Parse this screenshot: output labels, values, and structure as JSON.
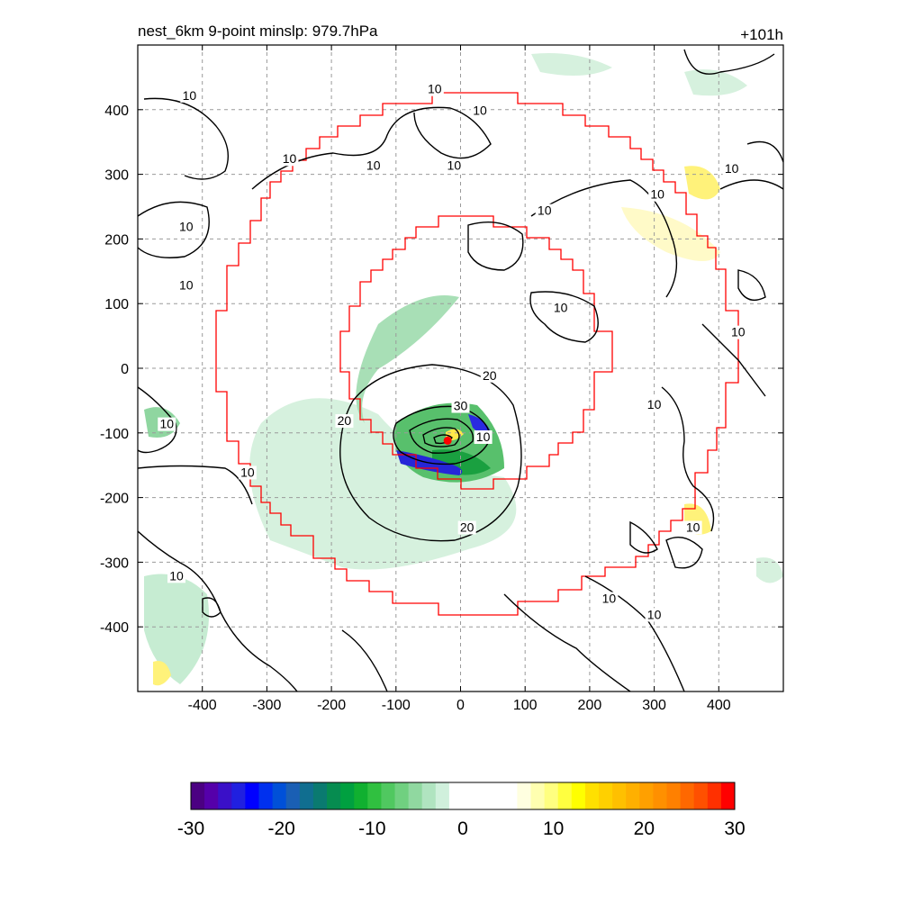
{
  "chart_data": {
    "type": "contour",
    "title_left": "nest_6km  9-point minslp: 979.7hPa",
    "title_right": "+101h",
    "xlim": [
      -500,
      500
    ],
    "ylim": [
      -500,
      500
    ],
    "x_ticks": [
      -400,
      -300,
      -200,
      -100,
      0,
      100,
      200,
      300,
      400
    ],
    "y_ticks": [
      400,
      300,
      200,
      100,
      0,
      -100,
      -200,
      -300,
      -400
    ],
    "x_tick_labels": [
      "-400",
      "-300",
      "-200",
      "-100",
      "0",
      "100",
      "200",
      "300",
      "400"
    ],
    "y_tick_labels": [
      "400",
      "300",
      "200",
      "100",
      "0",
      "-100",
      "-200",
      "-300",
      "-400"
    ],
    "grid": true,
    "storm_center": {
      "x": -20,
      "y": -112,
      "color": "#ff0000"
    },
    "contour_labels": [
      {
        "text": "10",
        "x": -420,
        "y": 418
      },
      {
        "text": "10",
        "x": -265,
        "y": 320
      },
      {
        "text": "10",
        "x": -135,
        "y": 310
      },
      {
        "text": "10",
        "x": -40,
        "y": 428
      },
      {
        "text": "10",
        "x": 30,
        "y": 395
      },
      {
        "text": "10",
        "x": -10,
        "y": 310
      },
      {
        "text": "10",
        "x": 130,
        "y": 240
      },
      {
        "text": "10",
        "x": -425,
        "y": 215
      },
      {
        "text": "10",
        "x": -425,
        "y": 125
      },
      {
        "text": "10",
        "x": 155,
        "y": 90
      },
      {
        "text": "10",
        "x": 420,
        "y": 305
      },
      {
        "text": "10",
        "x": 305,
        "y": 265
      },
      {
        "text": "10",
        "x": 430,
        "y": 52
      },
      {
        "text": "10",
        "x": 300,
        "y": -60
      },
      {
        "text": "10",
        "x": -455,
        "y": -90
      },
      {
        "text": "10",
        "x": -330,
        "y": -165
      },
      {
        "text": "10",
        "x": 360,
        "y": -250
      },
      {
        "text": "10",
        "x": 230,
        "y": -360
      },
      {
        "text": "10",
        "x": 300,
        "y": -385
      },
      {
        "text": "10",
        "x": -440,
        "y": -325
      },
      {
        "text": "10",
        "x": 35,
        "y": -110
      },
      {
        "text": "20",
        "x": 45,
        "y": -15
      },
      {
        "text": "20",
        "x": -180,
        "y": -85
      },
      {
        "text": "20",
        "x": 10,
        "y": -250
      },
      {
        "text": "30",
        "x": 0,
        "y": -62
      }
    ],
    "colorbar": {
      "min": -30,
      "max": 30,
      "ticks": [
        -30,
        -20,
        -10,
        0,
        10,
        20,
        30
      ],
      "tick_labels": [
        "-30",
        "-20",
        "-10",
        "0",
        "10",
        "20",
        "30"
      ],
      "colors": [
        "#4b0082",
        "#5500aa",
        "#3a10c8",
        "#2020e0",
        "#0000ff",
        "#0030ee",
        "#0050d8",
        "#1a5fb4",
        "#106e90",
        "#0a7a70",
        "#068c50",
        "#00a040",
        "#10b030",
        "#30c040",
        "#50c860",
        "#70d080",
        "#90d8a0",
        "#b0e4c0",
        "#d0f0dc",
        "#ffffff",
        "#ffffff",
        "#ffffff",
        "#ffffff",
        "#ffffff",
        "#ffffe0",
        "#ffffb0",
        "#ffff80",
        "#ffff40",
        "#ffff00",
        "#ffe000",
        "#ffd000",
        "#ffc000",
        "#ffb000",
        "#ffa000",
        "#ff9000",
        "#ff8000",
        "#ff6800",
        "#ff5000",
        "#ff3000",
        "#ff0000"
      ]
    }
  }
}
